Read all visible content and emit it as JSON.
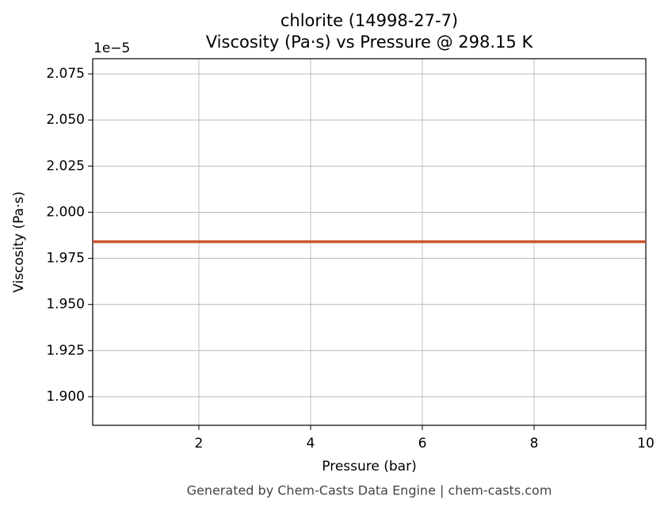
{
  "chart_data": {
    "type": "line",
    "title": "chlorite (14998-27-7)",
    "subtitle": "Viscosity (Pa·s) vs Pressure @ 298.15 K",
    "x_label": "Pressure (bar)",
    "y_label": "Viscosity (Pa·s)",
    "y_offset_label": "1e−5",
    "footer": "Generated by Chem-Casts Data Engine | chem-casts.com",
    "x": [
      0.1,
      10
    ],
    "series": [
      {
        "color": "#c9542c",
        "values": [
          1.984,
          1.984
        ]
      }
    ],
    "xlim": [
      0.1,
      10
    ],
    "ylim": [
      1.8845,
      2.0832
    ],
    "xticks": [
      2,
      4,
      6,
      8,
      10
    ],
    "yticks": [
      {
        "value": 1.9,
        "label": "1.900"
      },
      1.925,
      {
        "value": 1.95,
        "label": "1.950"
      },
      1.975,
      {
        "value": 2.0,
        "label": "2.000"
      },
      2.025,
      {
        "value": 2.05,
        "label": "2.050"
      },
      2.075
    ],
    "grid": true
  }
}
